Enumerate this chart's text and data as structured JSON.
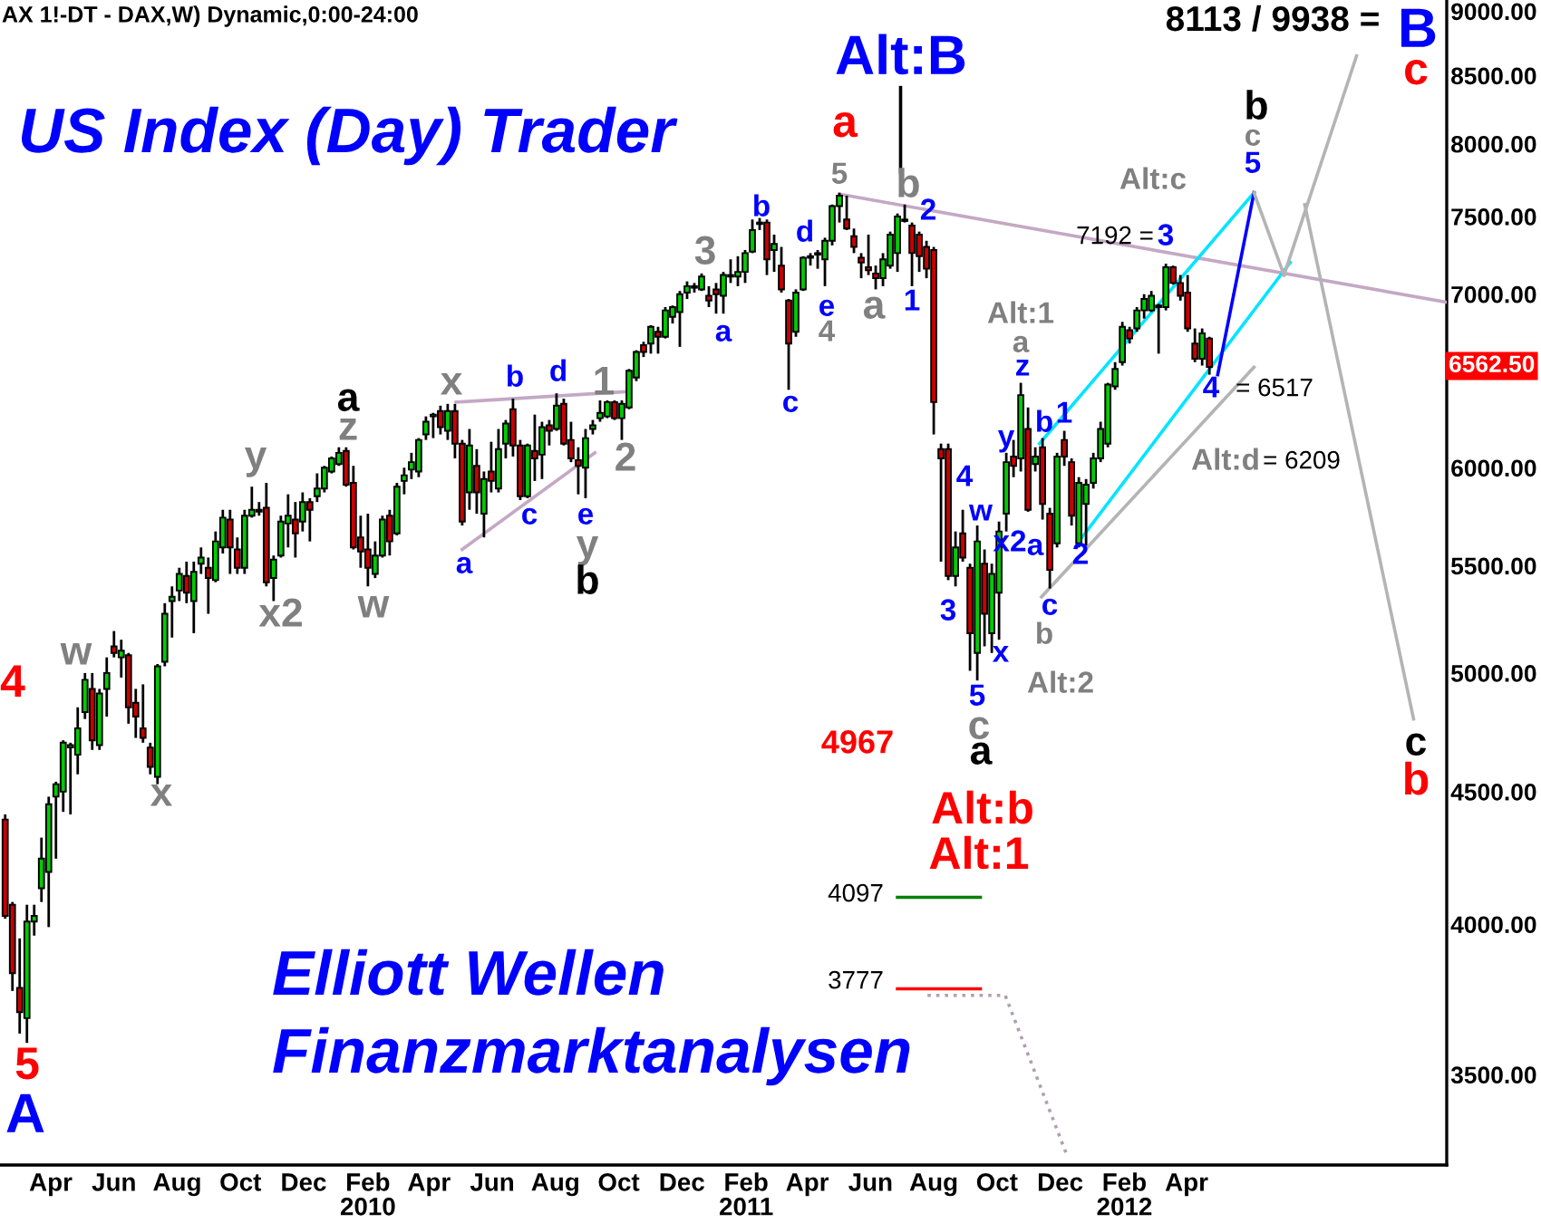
{
  "chart_data": {
    "type": "candlestick",
    "title": "US Index (Day) Trader",
    "subtitle": "AX 1!-DT - DAX,W) Dynamic,0:00-24:00",
    "log": true,
    "xlim": [
      "2009-02-11",
      "2012-12-08"
    ],
    "ylim": [
      3230,
      9090
    ],
    "xticks": [
      {
        "value": "2009-04-01",
        "label": "Apr"
      },
      {
        "value": "2009-06-01",
        "label": "Jun"
      },
      {
        "value": "2009-08-01",
        "label": "Aug"
      },
      {
        "value": "2009-10-01",
        "label": "Oct"
      },
      {
        "value": "2009-12-01",
        "label": "Dec"
      },
      {
        "value": "2010-02-01",
        "label": "Feb\n2010"
      },
      {
        "value": "2010-04-01",
        "label": "Apr"
      },
      {
        "value": "2010-06-01",
        "label": "Jun"
      },
      {
        "value": "2010-08-01",
        "label": "Aug"
      },
      {
        "value": "2010-10-01",
        "label": "Oct"
      },
      {
        "value": "2010-12-01",
        "label": "Dec"
      },
      {
        "value": "2011-02-01",
        "label": "Feb\n2011"
      },
      {
        "value": "2011-04-01",
        "label": "Apr"
      },
      {
        "value": "2011-06-01",
        "label": "Jun"
      },
      {
        "value": "2011-08-01",
        "label": "Aug"
      },
      {
        "value": "2011-10-01",
        "label": "Oct"
      },
      {
        "value": "2011-12-01",
        "label": "Dec"
      },
      {
        "value": "2012-02-01",
        "label": "Feb\n2012"
      },
      {
        "value": "2012-04-01",
        "label": "Apr"
      }
    ],
    "yticks": [
      {
        "value": 3500,
        "label": "3500.00"
      },
      {
        "value": 4000,
        "label": "4000.00"
      },
      {
        "value": 4500,
        "label": "4500.00"
      },
      {
        "value": 5000,
        "label": "5000.00"
      },
      {
        "value": 5500,
        "label": "5500.00"
      },
      {
        "value": 6000,
        "label": "6000.00"
      },
      {
        "value": 7000,
        "label": "7000.00"
      },
      {
        "value": 7500,
        "label": "7500.00"
      },
      {
        "value": 8000,
        "label": "8000.00"
      },
      {
        "value": 8500,
        "label": "8500.00"
      },
      {
        "value": 9000,
        "label": "9000.00"
      }
    ],
    "x": [
      "2009-02-16",
      "2009-02-23",
      "2009-03-02",
      "2009-03-09",
      "2009-03-16",
      "2009-03-23",
      "2009-03-30",
      "2009-04-06",
      "2009-04-13",
      "2009-04-20",
      "2009-04-27",
      "2009-05-04",
      "2009-05-11",
      "2009-05-18",
      "2009-05-25",
      "2009-06-01",
      "2009-06-08",
      "2009-06-15",
      "2009-06-22",
      "2009-06-29",
      "2009-07-06",
      "2009-07-13",
      "2009-07-20",
      "2009-07-27",
      "2009-08-03",
      "2009-08-10",
      "2009-08-17",
      "2009-08-24",
      "2009-08-31",
      "2009-09-07",
      "2009-09-14",
      "2009-09-21",
      "2009-09-28",
      "2009-10-05",
      "2009-10-12",
      "2009-10-19",
      "2009-10-26",
      "2009-11-02",
      "2009-11-09",
      "2009-11-16",
      "2009-11-23",
      "2009-11-30",
      "2009-12-07",
      "2009-12-14",
      "2009-12-21",
      "2009-12-28",
      "2010-01-04",
      "2010-01-11",
      "2010-01-18",
      "2010-01-25",
      "2010-02-01",
      "2010-02-08",
      "2010-02-15",
      "2010-02-22",
      "2010-03-01",
      "2010-03-08",
      "2010-03-15",
      "2010-03-22",
      "2010-03-29",
      "2010-04-05",
      "2010-04-12",
      "2010-04-19",
      "2010-04-26",
      "2010-05-03",
      "2010-05-10",
      "2010-05-17",
      "2010-05-24",
      "2010-05-31",
      "2010-06-07",
      "2010-06-14",
      "2010-06-21",
      "2010-06-28",
      "2010-07-05",
      "2010-07-12",
      "2010-07-19",
      "2010-07-26",
      "2010-08-02",
      "2010-08-09",
      "2010-08-16",
      "2010-08-23",
      "2010-08-30",
      "2010-09-06",
      "2010-09-13",
      "2010-09-20",
      "2010-09-27",
      "2010-10-04",
      "2010-10-11",
      "2010-10-18",
      "2010-10-25",
      "2010-11-01",
      "2010-11-08",
      "2010-11-15",
      "2010-11-22",
      "2010-11-29",
      "2010-12-06",
      "2010-12-13",
      "2010-12-20",
      "2010-12-27",
      "2011-01-03",
      "2011-01-10",
      "2011-01-17",
      "2011-01-24",
      "2011-01-31",
      "2011-02-07",
      "2011-02-14",
      "2011-02-21",
      "2011-02-28",
      "2011-03-07",
      "2011-03-14",
      "2011-03-21",
      "2011-03-28",
      "2011-04-04",
      "2011-04-11",
      "2011-04-18",
      "2011-04-25",
      "2011-05-02",
      "2011-05-09",
      "2011-05-16",
      "2011-05-23",
      "2011-05-30",
      "2011-06-06",
      "2011-06-13",
      "2011-06-20",
      "2011-06-27",
      "2011-07-04",
      "2011-07-11",
      "2011-07-18",
      "2011-07-25",
      "2011-08-01",
      "2011-08-08",
      "2011-08-15",
      "2011-08-22",
      "2011-08-29",
      "2011-09-05",
      "2011-09-12",
      "2011-09-19",
      "2011-09-26",
      "2011-10-03",
      "2011-10-10",
      "2011-10-17",
      "2011-10-24",
      "2011-10-31",
      "2011-11-07",
      "2011-11-14",
      "2011-11-21",
      "2011-11-28",
      "2011-12-05",
      "2011-12-12",
      "2011-12-19",
      "2011-12-26",
      "2012-01-02",
      "2012-01-09",
      "2012-01-16",
      "2012-01-23",
      "2012-01-30",
      "2012-02-06",
      "2012-02-13",
      "2012-02-20",
      "2012-02-27",
      "2012-03-05",
      "2012-03-12",
      "2012-03-19",
      "2012-03-26",
      "2012-04-02",
      "2012-04-09",
      "2012-04-16",
      "2012-04-23"
    ],
    "ohlc": [
      [
        4390,
        4410,
        4020,
        4030
      ],
      [
        4070,
        4080,
        3770,
        3830
      ],
      [
        3780,
        3950,
        3630,
        3700
      ],
      [
        3680,
        4070,
        3600,
        4010
      ],
      [
        4010,
        4070,
        3960,
        4030
      ],
      [
        4130,
        4320,
        4080,
        4240
      ],
      [
        4190,
        4480,
        3990,
        4450
      ],
      [
        4480,
        4540,
        4240,
        4530
      ],
      [
        4500,
        4710,
        4420,
        4700
      ],
      [
        4680,
        4700,
        4410,
        4690
      ],
      [
        4650,
        4850,
        4570,
        4760
      ],
      [
        4830,
        5000,
        4800,
        4970
      ],
      [
        4930,
        5000,
        4670,
        4710
      ],
      [
        4690,
        4930,
        4670,
        4910
      ],
      [
        4930,
        5070,
        4810,
        5000
      ],
      [
        5120,
        5190,
        5070,
        5090
      ],
      [
        5070,
        5150,
        4980,
        5100
      ],
      [
        5080,
        5090,
        4780,
        4850
      ],
      [
        4870,
        4930,
        4720,
        4810
      ],
      [
        4760,
        4950,
        4700,
        4720
      ],
      [
        4680,
        4700,
        4570,
        4600
      ],
      [
        4560,
        5040,
        4530,
        5030
      ],
      [
        5050,
        5320,
        5030,
        5270
      ],
      [
        5330,
        5400,
        5160,
        5350
      ],
      [
        5380,
        5490,
        5330,
        5460
      ],
      [
        5450,
        5520,
        5320,
        5370
      ],
      [
        5330,
        5520,
        5180,
        5470
      ],
      [
        5510,
        5590,
        5460,
        5540
      ],
      [
        5490,
        5540,
        5270,
        5440
      ],
      [
        5430,
        5670,
        5420,
        5620
      ],
      [
        5590,
        5780,
        5560,
        5740
      ],
      [
        5730,
        5780,
        5460,
        5590
      ],
      [
        5580,
        5640,
        5460,
        5490
      ],
      [
        5490,
        5780,
        5460,
        5750
      ],
      [
        5750,
        5900,
        5740,
        5780
      ],
      [
        5780,
        5820,
        5750,
        5770
      ],
      [
        5790,
        5920,
        5400,
        5420
      ],
      [
        5440,
        5550,
        5330,
        5530
      ],
      [
        5550,
        5750,
        5540,
        5720
      ],
      [
        5710,
        5860,
        5590,
        5750
      ],
      [
        5730,
        5820,
        5540,
        5660
      ],
      [
        5720,
        5870,
        5670,
        5820
      ],
      [
        5820,
        5840,
        5620,
        5780
      ],
      [
        5850,
        5970,
        5820,
        5890
      ],
      [
        5890,
        6010,
        5870,
        6000
      ],
      [
        5980,
        6060,
        5970,
        6050
      ],
      [
        6020,
        6110,
        6010,
        6080
      ],
      [
        6090,
        6110,
        5900,
        5910
      ],
      [
        5920,
        6010,
        5580,
        5590
      ],
      [
        5640,
        5750,
        5490,
        5570
      ],
      [
        5580,
        5760,
        5400,
        5490
      ],
      [
        5460,
        5620,
        5440,
        5550
      ],
      [
        5550,
        5750,
        5540,
        5730
      ],
      [
        5750,
        5780,
        5550,
        5620
      ],
      [
        5660,
        5920,
        5650,
        5900
      ],
      [
        5930,
        6000,
        5860,
        5960
      ],
      [
        5990,
        6080,
        5940,
        6030
      ],
      [
        5980,
        6160,
        5950,
        6150
      ],
      [
        6180,
        6280,
        6150,
        6250
      ],
      [
        6280,
        6300,
        6160,
        6290
      ],
      [
        6310,
        6340,
        6180,
        6220
      ],
      [
        6200,
        6350,
        6150,
        6310
      ],
      [
        6310,
        6350,
        6050,
        6130
      ],
      [
        6130,
        6150,
        5700,
        5720
      ],
      [
        5870,
        6210,
        5780,
        6120
      ],
      [
        6010,
        6100,
        5760,
        5870
      ],
      [
        5760,
        5980,
        5640,
        5940
      ],
      [
        5980,
        6140,
        5870,
        5930
      ],
      [
        5890,
        6210,
        5870,
        6100
      ],
      [
        6130,
        6260,
        6050,
        6240
      ],
      [
        6320,
        6380,
        6060,
        6120
      ],
      [
        6120,
        6150,
        5830,
        5850
      ],
      [
        5850,
        6130,
        5840,
        6120
      ],
      [
        6090,
        6290,
        5930,
        6050
      ],
      [
        6070,
        6250,
        5940,
        6220
      ],
      [
        6230,
        6260,
        6120,
        6200
      ],
      [
        6210,
        6410,
        6200,
        6340
      ],
      [
        6350,
        6380,
        6120,
        6130
      ],
      [
        6150,
        6250,
        6030,
        6050
      ],
      [
        6040,
        6110,
        5860,
        6010
      ],
      [
        6000,
        6210,
        5840,
        6160
      ],
      [
        6210,
        6260,
        6180,
        6230
      ],
      [
        6270,
        6370,
        6250,
        6300
      ],
      [
        6280,
        6370,
        6270,
        6360
      ],
      [
        6360,
        6370,
        6260,
        6270
      ],
      [
        6270,
        6370,
        6150,
        6350
      ],
      [
        6330,
        6550,
        6320,
        6540
      ],
      [
        6500,
        6660,
        6480,
        6650
      ],
      [
        6690,
        6710,
        6620,
        6650
      ],
      [
        6700,
        6810,
        6640,
        6800
      ],
      [
        6770,
        6800,
        6640,
        6740
      ],
      [
        6740,
        6920,
        6730,
        6900
      ],
      [
        6860,
        6930,
        6820,
        6920
      ],
      [
        6890,
        7020,
        6680,
        7000
      ],
      [
        7010,
        7080,
        6970,
        7050
      ],
      [
        7040,
        7070,
        7010,
        7050
      ],
      [
        7030,
        7130,
        7020,
        7110
      ],
      [
        6990,
        7050,
        6920,
        6960
      ],
      [
        7030,
        7070,
        6880,
        7000
      ],
      [
        6990,
        7140,
        6880,
        7120
      ],
      [
        7110,
        7220,
        7070,
        7120
      ],
      [
        7110,
        7240,
        7050,
        7140
      ],
      [
        7140,
        7280,
        7070,
        7260
      ],
      [
        7270,
        7480,
        7260,
        7410
      ],
      [
        7450,
        7490,
        7410,
        7460
      ],
      [
        7460,
        7480,
        7120,
        7220
      ],
      [
        7280,
        7380,
        7140,
        7320
      ],
      [
        7180,
        7300,
        7010,
        7030
      ],
      [
        6960,
        6970,
        6430,
        6700
      ],
      [
        6770,
        7030,
        6740,
        7010
      ],
      [
        7030,
        7240,
        7020,
        7230
      ],
      [
        7230,
        7260,
        7180,
        7240
      ],
      [
        7250,
        7280,
        7160,
        7260
      ],
      [
        7220,
        7360,
        7050,
        7340
      ],
      [
        7340,
        7580,
        7310,
        7570
      ],
      [
        7570,
        7660,
        7460,
        7640
      ],
      [
        7480,
        7640,
        7410,
        7420
      ],
      [
        7370,
        7420,
        7260,
        7300
      ],
      [
        7230,
        7260,
        7100,
        7200
      ],
      [
        7170,
        7380,
        7120,
        7150
      ],
      [
        7130,
        7180,
        7030,
        7100
      ],
      [
        7100,
        7260,
        7050,
        7220
      ],
      [
        7180,
        7400,
        7160,
        7380
      ],
      [
        7260,
        7520,
        7140,
        7500
      ],
      [
        7470,
        7580,
        7460,
        7480
      ],
      [
        7440,
        7460,
        7050,
        7260
      ],
      [
        7380,
        7400,
        7140,
        7240
      ],
      [
        7300,
        7340,
        7100,
        7160
      ],
      [
        7280,
        7300,
        6180,
        6360
      ],
      [
        6100,
        6130,
        5520,
        6050
      ],
      [
        6100,
        6130,
        5430,
        5450
      ],
      [
        5450,
        5670,
        5400,
        5590
      ],
      [
        5660,
        5780,
        5520,
        5540
      ],
      [
        5490,
        5510,
        5010,
        5180
      ],
      [
        5090,
        5700,
        4967,
        5620
      ],
      [
        5510,
        5580,
        5120,
        5270
      ],
      [
        5180,
        5510,
        5090,
        5460
      ],
      [
        5370,
        5720,
        5150,
        5670
      ],
      [
        5760,
        6080,
        5670,
        6030
      ],
      [
        6060,
        6150,
        5950,
        6010
      ],
      [
        6050,
        6470,
        5980,
        6400
      ],
      [
        6210,
        6330,
        5770,
        5780
      ],
      [
        6020,
        6110,
        5980,
        6060
      ],
      [
        6110,
        6160,
        5730,
        5810
      ],
      [
        5760,
        5790,
        5390,
        5480
      ],
      [
        5610,
        6080,
        5590,
        6060
      ],
      [
        6150,
        6200,
        6010,
        6060
      ],
      [
        6030,
        6050,
        5700,
        5750
      ],
      [
        5610,
        5950,
        5590,
        5920
      ],
      [
        5810,
        5940,
        5600,
        5910
      ],
      [
        5920,
        6080,
        5890,
        6050
      ],
      [
        6050,
        6250,
        6030,
        6210
      ],
      [
        6130,
        6470,
        6110,
        6460
      ],
      [
        6450,
        6590,
        6430,
        6550
      ],
      [
        6590,
        6830,
        6570,
        6800
      ],
      [
        6780,
        6800,
        6700,
        6730
      ],
      [
        6790,
        6920,
        6770,
        6900
      ],
      [
        6900,
        7000,
        6850,
        6970
      ],
      [
        6900,
        7020,
        6890,
        6990
      ],
      [
        6920,
        6940,
        6640,
        6930
      ],
      [
        6920,
        7192,
        6900,
        7170
      ],
      [
        7170,
        7180,
        7060,
        7070
      ],
      [
        7070,
        7120,
        6960,
        6990
      ],
      [
        7010,
        7120,
        6770,
        6790
      ],
      [
        6700,
        6790,
        6590,
        6610
      ],
      [
        6610,
        6790,
        6570,
        6760
      ],
      [
        6730,
        6740,
        6517,
        6562.5
      ]
    ],
    "colors": [
      "#cc0000",
      "#cc0000",
      "#cc0000",
      "#00cc00",
      "#00cc00",
      "#00cc00",
      "#00cc00",
      "#00cc00",
      "#00cc00",
      "#00cc00",
      "#00cc00",
      "#00cc00",
      "#cc0000",
      "#00cc00",
      "#00cc00",
      "#cc0000",
      "#00cc00",
      "#cc0000",
      "#cc0000",
      "#cc0000",
      "#cc0000",
      "#00cc00",
      "#00cc00",
      "#00cc00",
      "#00cc00",
      "#cc0000",
      "#00cc00",
      "#00cc00",
      "#cc0000",
      "#00cc00",
      "#00cc00",
      "#cc0000",
      "#cc0000",
      "#00cc00",
      "#00cc00",
      "#cc0000",
      "#cc0000",
      "#00cc00",
      "#00cc00",
      "#00cc00",
      "#cc0000",
      "#00cc00",
      "#cc0000",
      "#00cc00",
      "#00cc00",
      "#00cc00",
      "#00cc00",
      "#cc0000",
      "#cc0000",
      "#cc0000",
      "#cc0000",
      "#00cc00",
      "#00cc00",
      "#cc0000",
      "#00cc00",
      "#00cc00",
      "#00cc00",
      "#00cc00",
      "#00cc00",
      "#00cc00",
      "#cc0000",
      "#00cc00",
      "#cc0000",
      "#cc0000",
      "#00cc00",
      "#cc0000",
      "#00cc00",
      "#cc0000",
      "#00cc00",
      "#00cc00",
      "#cc0000",
      "#cc0000",
      "#00cc00",
      "#cc0000",
      "#00cc00",
      "#cc0000",
      "#00cc00",
      "#cc0000",
      "#cc0000",
      "#cc0000",
      "#00cc00",
      "#00cc00",
      "#00cc00",
      "#00cc00",
      "#cc0000",
      "#00cc00",
      "#00cc00",
      "#00cc00",
      "#cc0000",
      "#00cc00",
      "#cc0000",
      "#00cc00",
      "#00cc00",
      "#00cc00",
      "#00cc00",
      "#00cc00",
      "#00cc00",
      "#cc0000",
      "#cc0000",
      "#00cc00",
      "#00cc00",
      "#00cc00",
      "#00cc00",
      "#00cc00",
      "#00cc00",
      "#cc0000",
      "#00cc00",
      "#cc0000",
      "#cc0000",
      "#00cc00",
      "#00cc00",
      "#00cc00",
      "#00cc00",
      "#00cc00",
      "#00cc00",
      "#00cc00",
      "#cc0000",
      "#cc0000",
      "#cc0000",
      "#cc0000",
      "#cc0000",
      "#00cc00",
      "#00cc00",
      "#00cc00",
      "#00cc00",
      "#cc0000",
      "#cc0000",
      "#cc0000",
      "#cc0000",
      "#cc0000",
      "#cc0000",
      "#00cc00",
      "#cc0000",
      "#cc0000",
      "#00cc00",
      "#cc0000",
      "#00cc00",
      "#00cc00",
      "#00cc00",
      "#cc0000",
      "#00cc00",
      "#cc0000",
      "#00cc00",
      "#cc0000",
      "#cc0000",
      "#00cc00",
      "#cc0000",
      "#cc0000",
      "#00cc00",
      "#00cc00",
      "#00cc00",
      "#00cc00",
      "#00cc00",
      "#00cc00",
      "#00cc00",
      "#cc0000",
      "#00cc00",
      "#00cc00",
      "#00cc00",
      "#00cc00",
      "#00cc00",
      "#cc0000",
      "#cc0000",
      "#cc0000",
      "#cc0000",
      "#00cc00",
      "#cc0000"
    ],
    "series": [
      {
        "type": "line",
        "color": "#c4a8c4",
        "x": [
          "2010-04-27",
          "2010-10-10"
        ],
        "values": [
          6360,
          6420
        ]
      },
      {
        "type": "line",
        "color": "#c4a8c4",
        "x": [
          "2010-05-03",
          "2010-09-08"
        ],
        "values": [
          5580,
          6080
        ]
      },
      {
        "type": "line",
        "color": "#c4a8c4",
        "x": [
          "2011-05-02",
          "2012-12-08"
        ],
        "values": [
          7650,
          6950
        ]
      },
      {
        "type": "line",
        "color": "#00e5ff",
        "x": [
          "2011-11-11",
          "2012-06-05"
        ],
        "values": [
          6130,
          7660
        ]
      },
      {
        "type": "line",
        "color": "#00e5ff",
        "x": [
          "2011-12-22",
          "2012-07-10"
        ],
        "values": [
          5640,
          7200
        ]
      },
      {
        "type": "line",
        "color": "#b4b4b4",
        "x": [
          "2011-11-13",
          "2012-06-05"
        ],
        "values": [
          5350,
          6560
        ]
      },
      {
        "type": "line",
        "color": "#0000ff",
        "x": [
          "2012-05-01",
          "2012-06-05"
        ],
        "values": [
          6517,
          7660
        ]
      },
      {
        "type": "line",
        "color": "#b4b4b4",
        "x": [
          "2012-06-05",
          "2012-07-04"
        ],
        "values": [
          7660,
          7120
        ]
      },
      {
        "type": "line",
        "color": "#b4b4b4",
        "x": [
          "2012-07-04",
          "2012-09-12"
        ],
        "values": [
          7120,
          8650
        ]
      },
      {
        "type": "line",
        "color": "#b4b4b4",
        "x": [
          "2012-07-24",
          "2012-11-06"
        ],
        "values": [
          7580,
          4800
        ]
      },
      {
        "type": "line",
        "color": "#000000",
        "x": [
          "2011-06-30",
          "2011-06-30"
        ],
        "values": [
          8410,
          7800
        ]
      },
      {
        "type": "line",
        "color": "#008000",
        "x": [
          "2011-06-27",
          "2011-09-15"
        ],
        "values": [
          4097,
          4097
        ]
      },
      {
        "type": "line",
        "color": "#ff0000",
        "x": [
          "2011-06-27",
          "2011-09-15"
        ],
        "values": [
          3777,
          3777
        ]
      },
      {
        "type": "line",
        "color": "#b0a0b0",
        "line_style": "dotted",
        "x": [
          "2011-07-26",
          "2011-10-09",
          "2011-12-07"
        ],
        "values": [
          3755,
          3755,
          3262
        ]
      }
    ],
    "annotations": [
      "4",
      "5",
      "A",
      "w",
      "x",
      "y",
      "x2",
      "a",
      "z",
      "w",
      "x",
      "a",
      "b",
      "c",
      "d",
      "e",
      "y",
      "b",
      "1",
      "2",
      "3",
      "a",
      "b",
      "c",
      "d",
      "e",
      "4",
      "5",
      "a",
      "Alt:B",
      "a",
      "b",
      "1",
      "2",
      "3",
      "4",
      "w",
      "5",
      "c",
      "a",
      "4967",
      "x",
      "x2",
      "a",
      "y",
      "z",
      "a",
      "Alt:1",
      "b",
      "1",
      "c",
      "b",
      "Alt:2",
      "2",
      "Alt:b",
      "Alt:1",
      "4097",
      "3777",
      "8113 / 9938 =",
      "B",
      "c",
      "b",
      "c",
      "5",
      "Alt:c",
      "7192 =",
      "3",
      "4",
      "= 6517",
      "Alt:d",
      "= 6209",
      "c",
      "b",
      "6562.50",
      "Elliott Wellen",
      "Finanzmarktanalysen"
    ]
  }
}
